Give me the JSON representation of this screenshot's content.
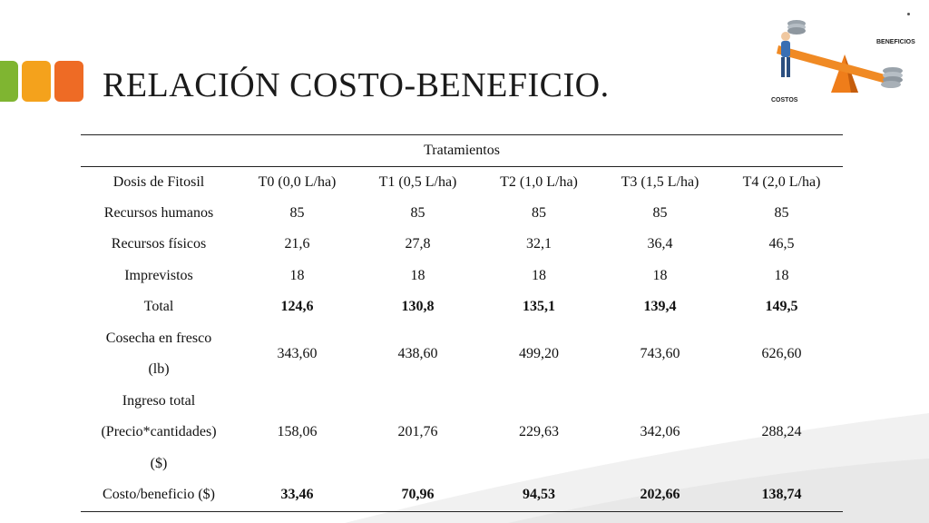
{
  "title": "RELACIÓN COSTO-BENEFICIO.",
  "accent_colors": [
    "#7fb531",
    "#f4a21c",
    "#ee6b25"
  ],
  "illustration": {
    "icon": "cost-benefit-seesaw",
    "label_benefits": "BENEFICIOS",
    "label_costs": "COSTOS"
  },
  "table": {
    "group_header": "Tratamientos",
    "header": [
      "Dosis de Fitosil",
      "T0 (0,0 L/ha)",
      "T1 (0,5 L/ha)",
      "T2 (1,0 L/ha)",
      "T3 (1,5 L/ha)",
      "T4 (2,0 L/ha)"
    ],
    "rows": [
      {
        "label": "Recursos humanos",
        "values": [
          "85",
          "85",
          "85",
          "85",
          "85"
        ]
      },
      {
        "label": "Recursos físicos",
        "values": [
          "21,6",
          "27,8",
          "32,1",
          "36,4",
          "46,5"
        ]
      },
      {
        "label": "Imprevistos",
        "values": [
          "18",
          "18",
          "18",
          "18",
          "18"
        ]
      },
      {
        "label": "Total",
        "values": [
          "124,6",
          "130,8",
          "135,1",
          "139,4",
          "149,5"
        ]
      },
      {
        "label_lines": [
          "Cosecha en fresco",
          "(lb)"
        ],
        "values": [
          "343,60",
          "438,60",
          "499,20",
          "743,60",
          "626,60"
        ]
      },
      {
        "label_lines": [
          "Ingreso total",
          "(Precio*cantidades)",
          "($)"
        ],
        "values": [
          "158,06",
          "201,76",
          "229,63",
          "342,06",
          "288,24"
        ]
      },
      {
        "label": "Costo/beneficio ($)",
        "values": [
          "33,46",
          "70,96",
          "94,53",
          "202,66",
          "138,74"
        ]
      }
    ]
  }
}
